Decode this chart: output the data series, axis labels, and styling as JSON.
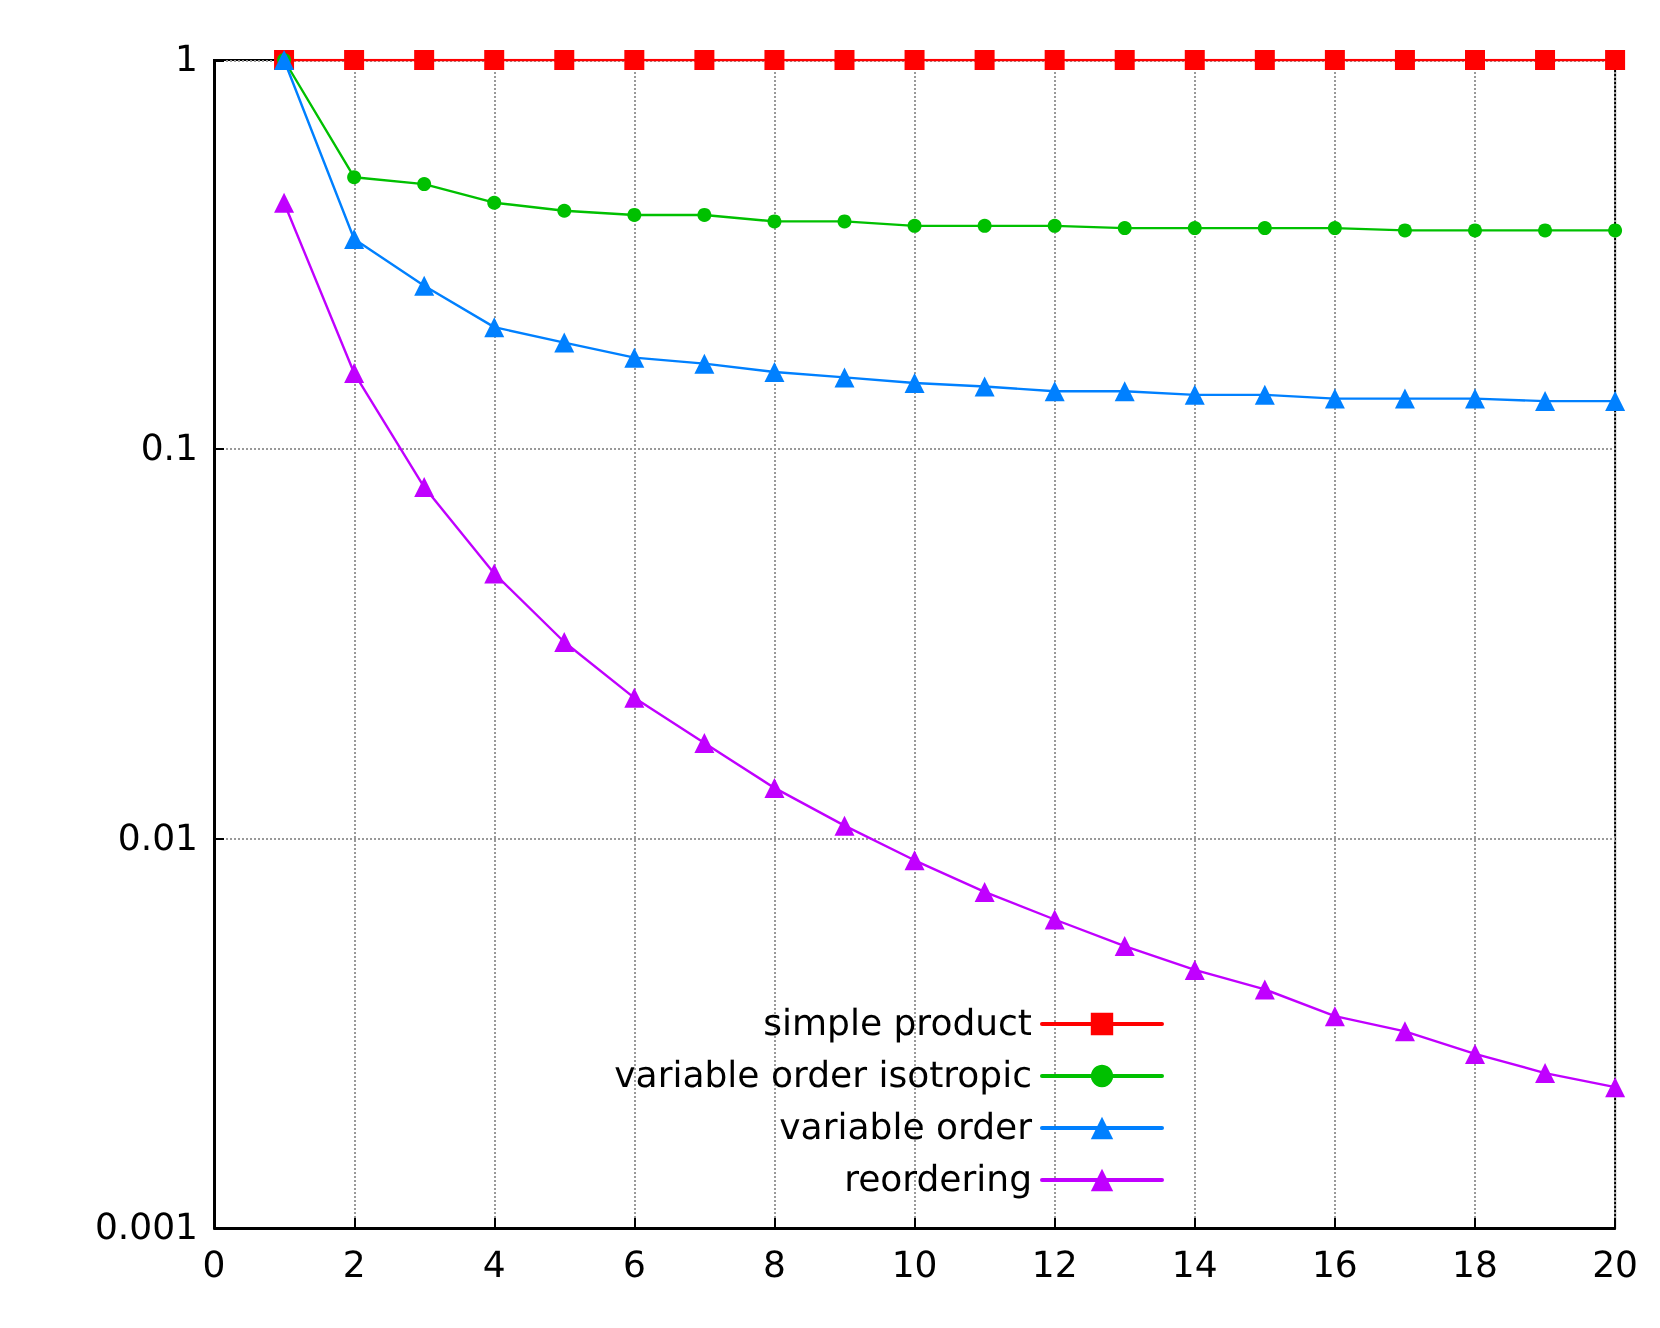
{
  "chart_data": {
    "type": "line",
    "x": [
      1,
      2,
      3,
      4,
      5,
      6,
      7,
      8,
      9,
      10,
      11,
      12,
      13,
      14,
      15,
      16,
      17,
      18,
      19,
      20
    ],
    "series": [
      {
        "name": "simple product",
        "color": "#ff0000",
        "marker": "square",
        "values": [
          1,
          1,
          1,
          1,
          1,
          1,
          1,
          1,
          1,
          1,
          1,
          1,
          1,
          1,
          1,
          1,
          1,
          1,
          1,
          1
        ]
      },
      {
        "name": "variable order isotropic",
        "color": "#00c000",
        "marker": "circle",
        "values": [
          1,
          0.5,
          0.48,
          0.43,
          0.41,
          0.4,
          0.4,
          0.385,
          0.385,
          0.375,
          0.375,
          0.375,
          0.37,
          0.37,
          0.37,
          0.37,
          0.365,
          0.365,
          0.365,
          0.365
        ]
      },
      {
        "name": "variable order",
        "color": "#0080ff",
        "marker": "triangle",
        "values": [
          1,
          0.347,
          0.263,
          0.206,
          0.188,
          0.172,
          0.166,
          0.158,
          0.153,
          0.148,
          0.145,
          0.141,
          0.141,
          0.138,
          0.138,
          0.135,
          0.135,
          0.135,
          0.133,
          0.133
        ]
      },
      {
        "name": "reordering",
        "color": "#c000ff",
        "marker": "triangle",
        "values": [
          0.43,
          0.157,
          0.08,
          0.048,
          0.032,
          0.023,
          0.0176,
          0.0135,
          0.0108,
          0.0088,
          0.0073,
          0.0062,
          0.0053,
          0.0046,
          0.0041,
          0.0035,
          0.0032,
          0.0028,
          0.0025,
          0.0023
        ]
      }
    ],
    "xlim": [
      0,
      20
    ],
    "xticks": [
      0,
      2,
      4,
      6,
      8,
      10,
      12,
      14,
      16,
      18,
      20
    ],
    "ylim": [
      0.001,
      1
    ],
    "yticks": [
      0.001,
      0.01,
      0.1,
      1
    ],
    "log": "y",
    "grid": true,
    "legend": "bottom right",
    "line_style": "solid"
  }
}
